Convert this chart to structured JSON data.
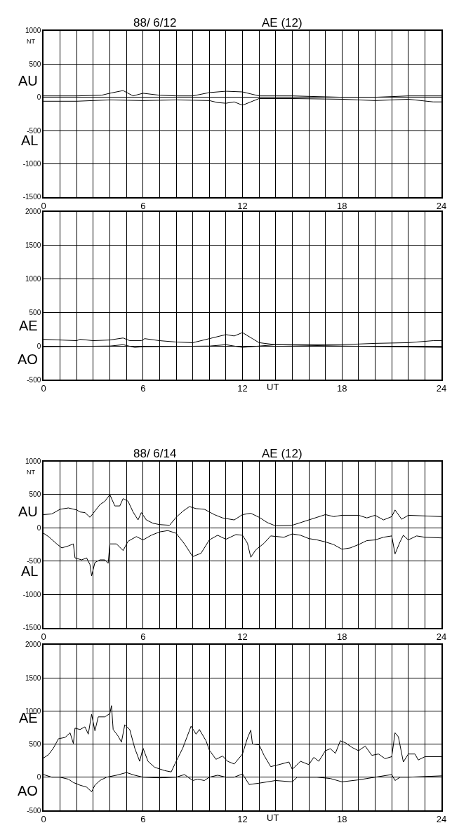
{
  "chart_data": [
    {
      "type": "line",
      "title": "88/ 6/12",
      "subtitle": "AE (12)",
      "ylabel": "NT",
      "series": [
        {
          "name": "AU",
          "color": "#000000",
          "x": [
            0,
            2,
            3.5,
            4,
            4.8,
            5.4,
            6,
            7,
            8,
            9,
            10,
            11,
            12,
            12.5,
            13,
            15,
            18,
            20,
            22,
            24
          ],
          "values": [
            20,
            20,
            30,
            60,
            100,
            20,
            60,
            30,
            20,
            20,
            70,
            90,
            80,
            50,
            20,
            20,
            0,
            0,
            20,
            20
          ]
        },
        {
          "name": "AL",
          "color": "#000000",
          "x": [
            0,
            2,
            4,
            6,
            8,
            10,
            10.5,
            11,
            11.5,
            12,
            12.5,
            13,
            15,
            18,
            20,
            22,
            23.5,
            24
          ],
          "values": [
            -60,
            -60,
            -40,
            -50,
            -40,
            -50,
            -80,
            -90,
            -70,
            -120,
            -70,
            -20,
            -20,
            -30,
            -50,
            -30,
            -70,
            -70
          ]
        }
      ],
      "xlim": [
        0,
        24
      ],
      "xticks": [
        0,
        {
          "value": 1,
          "label": null
        },
        {
          "value": 2,
          "label": null
        },
        {
          "value": 3,
          "label": null
        },
        {
          "value": 4,
          "label": null
        },
        {
          "value": 5,
          "label": null
        },
        6,
        {
          "value": 7,
          "label": null
        },
        {
          "value": 8,
          "label": null
        },
        {
          "value": 9,
          "label": null
        },
        {
          "value": 10,
          "label": null
        },
        {
          "value": 11,
          "label": null
        },
        12,
        {
          "value": 13,
          "label": null
        },
        {
          "value": 14,
          "label": null
        },
        {
          "value": 15,
          "label": null
        },
        {
          "value": 16,
          "label": null
        },
        {
          "value": 17,
          "label": null
        },
        18,
        {
          "value": 19,
          "label": null
        },
        {
          "value": 20,
          "label": null
        },
        {
          "value": 21,
          "label": null
        },
        {
          "value": 22,
          "label": null
        },
        {
          "value": 23,
          "label": null
        },
        24
      ],
      "ylim": [
        -1500,
        1000
      ],
      "yticks": [
        -1500,
        -1000,
        -500,
        0,
        500,
        1000
      ],
      "grid": true
    },
    {
      "type": "line",
      "xlabel": "UT",
      "series": [
        {
          "name": "AE",
          "color": "#000000",
          "x": [
            0,
            2,
            2.2,
            3,
            4,
            4.8,
            5.2,
            5.9,
            6.1,
            7,
            8,
            9,
            10,
            11,
            11.5,
            12,
            12.6,
            13,
            14,
            16,
            18,
            20,
            22,
            23.5,
            24
          ],
          "values": [
            100,
            80,
            100,
            80,
            90,
            120,
            80,
            80,
            110,
            80,
            60,
            50,
            110,
            170,
            150,
            200,
            110,
            50,
            20,
            20,
            20,
            40,
            50,
            80,
            80
          ]
        },
        {
          "name": "AO",
          "color": "#000000",
          "x": [
            0,
            4,
            4.8,
            5.5,
            6,
            10,
            11,
            12,
            14,
            18,
            24
          ],
          "values": [
            -10,
            0,
            20,
            -20,
            -10,
            0,
            20,
            -20,
            20,
            0,
            -20
          ]
        }
      ],
      "xlim": [
        0,
        24
      ],
      "xticks": [
        0,
        {
          "value": 1,
          "label": null
        },
        {
          "value": 2,
          "label": null
        },
        {
          "value": 3,
          "label": null
        },
        {
          "value": 4,
          "label": null
        },
        {
          "value": 5,
          "label": null
        },
        6,
        {
          "value": 7,
          "label": null
        },
        {
          "value": 8,
          "label": null
        },
        {
          "value": 9,
          "label": null
        },
        {
          "value": 10,
          "label": null
        },
        {
          "value": 11,
          "label": null
        },
        12,
        {
          "value": 13,
          "label": null
        },
        {
          "value": 14,
          "label": null
        },
        {
          "value": 15,
          "label": null
        },
        {
          "value": 16,
          "label": null
        },
        {
          "value": 17,
          "label": null
        },
        18,
        {
          "value": 19,
          "label": null
        },
        {
          "value": 20,
          "label": null
        },
        {
          "value": 21,
          "label": null
        },
        {
          "value": 22,
          "label": null
        },
        {
          "value": 23,
          "label": null
        },
        24
      ],
      "ylim": [
        -500,
        2000
      ],
      "yticks": [
        -500,
        0,
        500,
        1000,
        1500,
        2000
      ],
      "grid": true
    },
    {
      "type": "line",
      "title": "88/ 6/14",
      "subtitle": "AE (12)",
      "ylabel": "NT",
      "series": [
        {
          "name": "AU",
          "color": "#000000",
          "x": [
            0,
            0.5,
            1,
            1.5,
            2,
            2.2,
            2.5,
            2.8,
            3,
            3.4,
            3.7,
            4,
            4.3,
            4.6,
            4.8,
            5.1,
            5.4,
            5.7,
            5.9,
            6.2,
            6.6,
            7,
            7.6,
            8,
            8.4,
            8.8,
            9.2,
            9.7,
            10.3,
            10.8,
            11.5,
            12,
            12.5,
            13,
            13.5,
            14,
            15,
            15.5,
            16,
            17,
            17.5,
            18,
            19,
            19.5,
            20,
            20.5,
            21,
            21.2,
            21.6,
            22,
            23,
            24
          ],
          "values": [
            200,
            210,
            280,
            300,
            270,
            240,
            230,
            160,
            220,
            350,
            400,
            500,
            330,
            330,
            440,
            400,
            240,
            120,
            230,
            120,
            70,
            50,
            40,
            160,
            250,
            320,
            290,
            280,
            200,
            150,
            120,
            200,
            220,
            160,
            80,
            30,
            40,
            80,
            120,
            200,
            170,
            190,
            190,
            150,
            190,
            120,
            170,
            270,
            130,
            190,
            180,
            170
          ]
        },
        {
          "name": "AL",
          "color": "#000000",
          "x": [
            0,
            0.3,
            0.8,
            1.1,
            1.5,
            1.8,
            1.9,
            2.3,
            2.6,
            2.8,
            2.9,
            3.1,
            3.4,
            3.7,
            3.9,
            4,
            4.4,
            4.8,
            5.1,
            5.6,
            6,
            6.5,
            7,
            7.5,
            8,
            8.5,
            9,
            9.5,
            10,
            10.5,
            11,
            11.6,
            12,
            12.3,
            12.5,
            12.8,
            13.3,
            13.7,
            14.5,
            15,
            15.5,
            16,
            16.5,
            17,
            17.5,
            18,
            18.5,
            19,
            19.5,
            20,
            20.5,
            21,
            21.2,
            21.5,
            21.7,
            22,
            22.5,
            23,
            24
          ],
          "values": [
            -80,
            -130,
            -240,
            -300,
            -270,
            -240,
            -450,
            -480,
            -450,
            -550,
            -720,
            -520,
            -480,
            -480,
            -530,
            -240,
            -240,
            -340,
            -200,
            -130,
            -180,
            -110,
            -60,
            -40,
            -80,
            -240,
            -430,
            -380,
            -180,
            -110,
            -170,
            -100,
            -110,
            -230,
            -440,
            -330,
            -230,
            -120,
            -140,
            -90,
            -110,
            -160,
            -180,
            -210,
            -250,
            -320,
            -300,
            -250,
            -190,
            -180,
            -140,
            -120,
            -390,
            -210,
            -110,
            -180,
            -120,
            -140,
            -150
          ]
        }
      ],
      "xlim": [
        0,
        24
      ],
      "xticks": [
        0,
        {
          "value": 1,
          "label": null
        },
        {
          "value": 2,
          "label": null
        },
        {
          "value": 3,
          "label": null
        },
        {
          "value": 4,
          "label": null
        },
        {
          "value": 5,
          "label": null
        },
        6,
        {
          "value": 7,
          "label": null
        },
        {
          "value": 8,
          "label": null
        },
        {
          "value": 9,
          "label": null
        },
        {
          "value": 10,
          "label": null
        },
        {
          "value": 11,
          "label": null
        },
        12,
        {
          "value": 13,
          "label": null
        },
        {
          "value": 14,
          "label": null
        },
        {
          "value": 15,
          "label": null
        },
        {
          "value": 16,
          "label": null
        },
        {
          "value": 17,
          "label": null
        },
        18,
        {
          "value": 19,
          "label": null
        },
        {
          "value": 20,
          "label": null
        },
        {
          "value": 21,
          "label": null
        },
        {
          "value": 22,
          "label": null
        },
        {
          "value": 23,
          "label": null
        },
        24
      ],
      "ylim": [
        -1500,
        1000
      ],
      "yticks": [
        -1500,
        -1000,
        -500,
        0,
        500,
        1000
      ],
      "grid": true
    },
    {
      "type": "line",
      "xlabel": "UT",
      "series": [
        {
          "name": "AE",
          "color": "#000000",
          "x": [
            0,
            0.3,
            0.6,
            0.9,
            1.3,
            1.6,
            1.8,
            1.9,
            2.2,
            2.5,
            2.7,
            2.9,
            3.1,
            3.3,
            3.7,
            4,
            4.1,
            4.2,
            4.5,
            4.7,
            4.9,
            5.2,
            5.5,
            5.8,
            6,
            6.3,
            6.7,
            7.3,
            7.7,
            8,
            8.4,
            8.9,
            9.2,
            9.4,
            9.8,
            10,
            10.4,
            10.8,
            11.1,
            11.5,
            12,
            12.3,
            12.5,
            12.6,
            13,
            13.3,
            13.7,
            14.2,
            14.8,
            15,
            15.5,
            16,
            16.3,
            16.6,
            17,
            17.3,
            17.6,
            17.9,
            18.2,
            18.6,
            19,
            19.4,
            19.8,
            20.2,
            20.6,
            21,
            21.2,
            21.4,
            21.7,
            22,
            22.4,
            22.6,
            23,
            24
          ],
          "values": [
            290,
            340,
            440,
            580,
            600,
            670,
            510,
            740,
            720,
            760,
            650,
            950,
            700,
            910,
            910,
            960,
            1080,
            720,
            620,
            530,
            790,
            720,
            440,
            240,
            440,
            240,
            150,
            100,
            80,
            240,
            440,
            770,
            650,
            720,
            550,
            410,
            270,
            320,
            240,
            200,
            350,
            590,
            710,
            500,
            490,
            330,
            160,
            190,
            230,
            120,
            240,
            190,
            300,
            240,
            400,
            430,
            360,
            550,
            520,
            450,
            400,
            470,
            330,
            350,
            280,
            310,
            670,
            610,
            230,
            350,
            350,
            260,
            310,
            310
          ]
        },
        {
          "name": "AO",
          "color": "#000000",
          "x": [
            0,
            0.5,
            1,
            1.5,
            1.8,
            2.2,
            2.6,
            2.9,
            3.1,
            3.4,
            3.8,
            4.4,
            5,
            5.5,
            6,
            7,
            8,
            8.5,
            9,
            9.3,
            9.7,
            10,
            10.5,
            11,
            11.5,
            12,
            12.4,
            13,
            14,
            15,
            15.3,
            16.5,
            17.3,
            18,
            19,
            20,
            21,
            21.2,
            21.5,
            22,
            24
          ],
          "values": [
            40,
            0,
            0,
            -30,
            -80,
            -120,
            -150,
            -220,
            -120,
            -50,
            0,
            30,
            70,
            30,
            0,
            -10,
            0,
            40,
            -50,
            -30,
            -50,
            0,
            30,
            0,
            0,
            50,
            -110,
            -90,
            -50,
            -70,
            0,
            0,
            -20,
            -70,
            -40,
            0,
            40,
            -50,
            0,
            0,
            20
          ]
        }
      ],
      "xlim": [
        0,
        24
      ],
      "xticks": [
        0,
        {
          "value": 1,
          "label": null
        },
        {
          "value": 2,
          "label": null
        },
        {
          "value": 3,
          "label": null
        },
        {
          "value": 4,
          "label": null
        },
        {
          "value": 5,
          "label": null
        },
        6,
        {
          "value": 7,
          "label": null
        },
        {
          "value": 8,
          "label": null
        },
        {
          "value": 9,
          "label": null
        },
        {
          "value": 10,
          "label": null
        },
        {
          "value": 11,
          "label": null
        },
        12,
        {
          "value": 13,
          "label": null
        },
        {
          "value": 14,
          "label": null
        },
        {
          "value": 15,
          "label": null
        },
        {
          "value": 16,
          "label": null
        },
        {
          "value": 17,
          "label": null
        },
        18,
        {
          "value": 19,
          "label": null
        },
        {
          "value": 20,
          "label": null
        },
        {
          "value": 21,
          "label": null
        },
        {
          "value": 22,
          "label": null
        },
        {
          "value": 23,
          "label": null
        },
        24
      ],
      "ylim": [
        -500,
        2000
      ],
      "yticks": [
        -500,
        0,
        500,
        1000,
        1500,
        2000
      ],
      "grid": true
    }
  ]
}
